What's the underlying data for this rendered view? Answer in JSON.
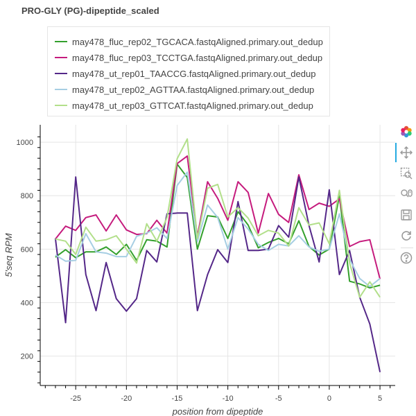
{
  "chart_data": {
    "type": "line",
    "title": "PRO-GLY (PG)-dipeptide_scaled",
    "xlabel": "position from dipeptide",
    "ylabel": "5'seq RPM",
    "xlim": [
      -28.5,
      6.5
    ],
    "ylim": [
      90,
      1065
    ],
    "x_ticks": [
      -25,
      -20,
      -15,
      -10,
      -5,
      0,
      5
    ],
    "y_ticks": [
      200,
      400,
      600,
      800,
      1000
    ],
    "grid": true,
    "legend_position": "top",
    "x": [
      -27,
      -26,
      -25,
      -24,
      -23,
      -22,
      -21,
      -20,
      -19,
      -18,
      -17,
      -16,
      -15,
      -14,
      -13,
      -12,
      -11,
      -10,
      -9,
      -8,
      -7,
      -6,
      -5,
      -4,
      -3,
      -2,
      -1,
      0,
      1,
      2,
      3,
      4,
      5
    ],
    "series": [
      {
        "name": "may478_fluc_rep02_TGCACA.fastqAligned.primary.out_dedup",
        "color": "#33a02c",
        "values": [
          570,
          598,
          568,
          590,
          590,
          608,
          580,
          618,
          558,
          635,
          630,
          608,
          918,
          868,
          600,
          725,
          720,
          640,
          740,
          690,
          605,
          625,
          640,
          620,
          706,
          610,
          578,
          600,
          800,
          480,
          470,
          455,
          465
        ]
      },
      {
        "name": "may478_fluc_rep03_TCCTGA.fastqAligned.primary.out_dedup",
        "color": "#c51b7d",
        "values": [
          638,
          686,
          670,
          718,
          728,
          668,
          728,
          672,
          655,
          658,
          708,
          660,
          920,
          948,
          648,
          852,
          790,
          708,
          852,
          812,
          660,
          808,
          730,
          700,
          878,
          748,
          772,
          760,
          788,
          610,
          628,
          635,
          488
        ]
      },
      {
        "name": "may478_ut_rep01_TAACCG.fastqAligned.primary.out_dedup",
        "color": "#542788",
        "values": [
          640,
          325,
          870,
          505,
          370,
          550,
          415,
          368,
          415,
          595,
          552,
          732,
          735,
          735,
          370,
          505,
          598,
          550,
          778,
          595,
          595,
          600,
          688,
          645,
          870,
          688,
          552,
          822,
          505,
          595,
          420,
          320,
          140
        ]
      },
      {
        "name": "may478_ut_rep02_AGTTAA.fastqAligned.primary.out_dedup",
        "color": "#a6cee3",
        "values": [
          578,
          555,
          558,
          658,
          590,
          585,
          572,
          572,
          648,
          660,
          680,
          640,
          838,
          888,
          628,
          765,
          718,
          600,
          718,
          675,
          618,
          595,
          618,
          612,
          650,
          608,
          592,
          600,
          732,
          562,
          490,
          460,
          490
        ]
      },
      {
        "name": "may478_ut_rep03_GTTCAT.fastqAligned.primary.out_dedup",
        "color": "#b2df8a",
        "values": [
          638,
          630,
          580,
          682,
          630,
          635,
          650,
          600,
          548,
          695,
          630,
          718,
          938,
          1012,
          640,
          828,
          842,
          720,
          755,
          716,
          650,
          670,
          660,
          612,
          755,
          690,
          698,
          620,
          820,
          548,
          420,
          478,
          420
        ]
      }
    ]
  },
  "toolbar": {
    "logo_icon": "bokeh-logo-icon",
    "tools": [
      "pan-icon",
      "box-zoom-icon",
      "wheel-zoom-icon",
      "save-icon",
      "reset-icon",
      "help-icon"
    ]
  }
}
